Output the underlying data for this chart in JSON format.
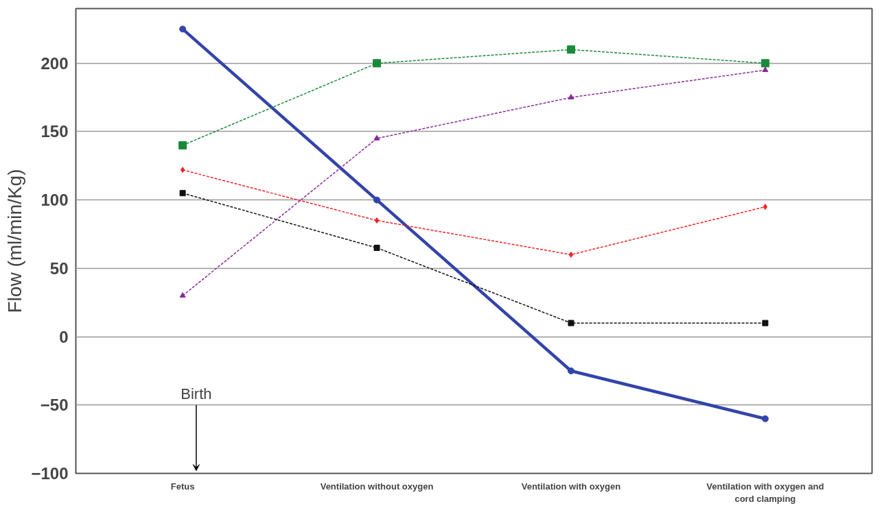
{
  "chart_data": {
    "type": "line",
    "ylabel": "Flow (ml/min/Kg)",
    "categories": [
      "Fetus",
      "Ventilation without oxygen",
      "Ventilation with oxygen",
      "Ventilation with oxygen and cord clamping"
    ],
    "series": [
      {
        "color": "#3344aa",
        "values": [
          225,
          100,
          -25,
          -60
        ],
        "marker": "circle",
        "line_style": "solid"
      },
      {
        "color": "#1a8a3a",
        "values": [
          140,
          200,
          210,
          200
        ],
        "marker": "square",
        "line_style": "dashed"
      },
      {
        "color": "#8a2a9a",
        "values": [
          30,
          145,
          175,
          195
        ],
        "marker": "triangle",
        "line_style": "dashed"
      },
      {
        "color": "#ee2222",
        "values": [
          122,
          85,
          60,
          95
        ],
        "marker": "diamond",
        "line_style": "dashed"
      },
      {
        "color": "#111111",
        "values": [
          105,
          65,
          10,
          10
        ],
        "marker": "square",
        "line_style": "dashed"
      }
    ],
    "ylim": [
      -100,
      240
    ],
    "yticks": [
      -100,
      -50,
      0,
      50,
      100,
      150,
      200
    ],
    "grid": "y",
    "annotations": [
      "Birth"
    ]
  }
}
